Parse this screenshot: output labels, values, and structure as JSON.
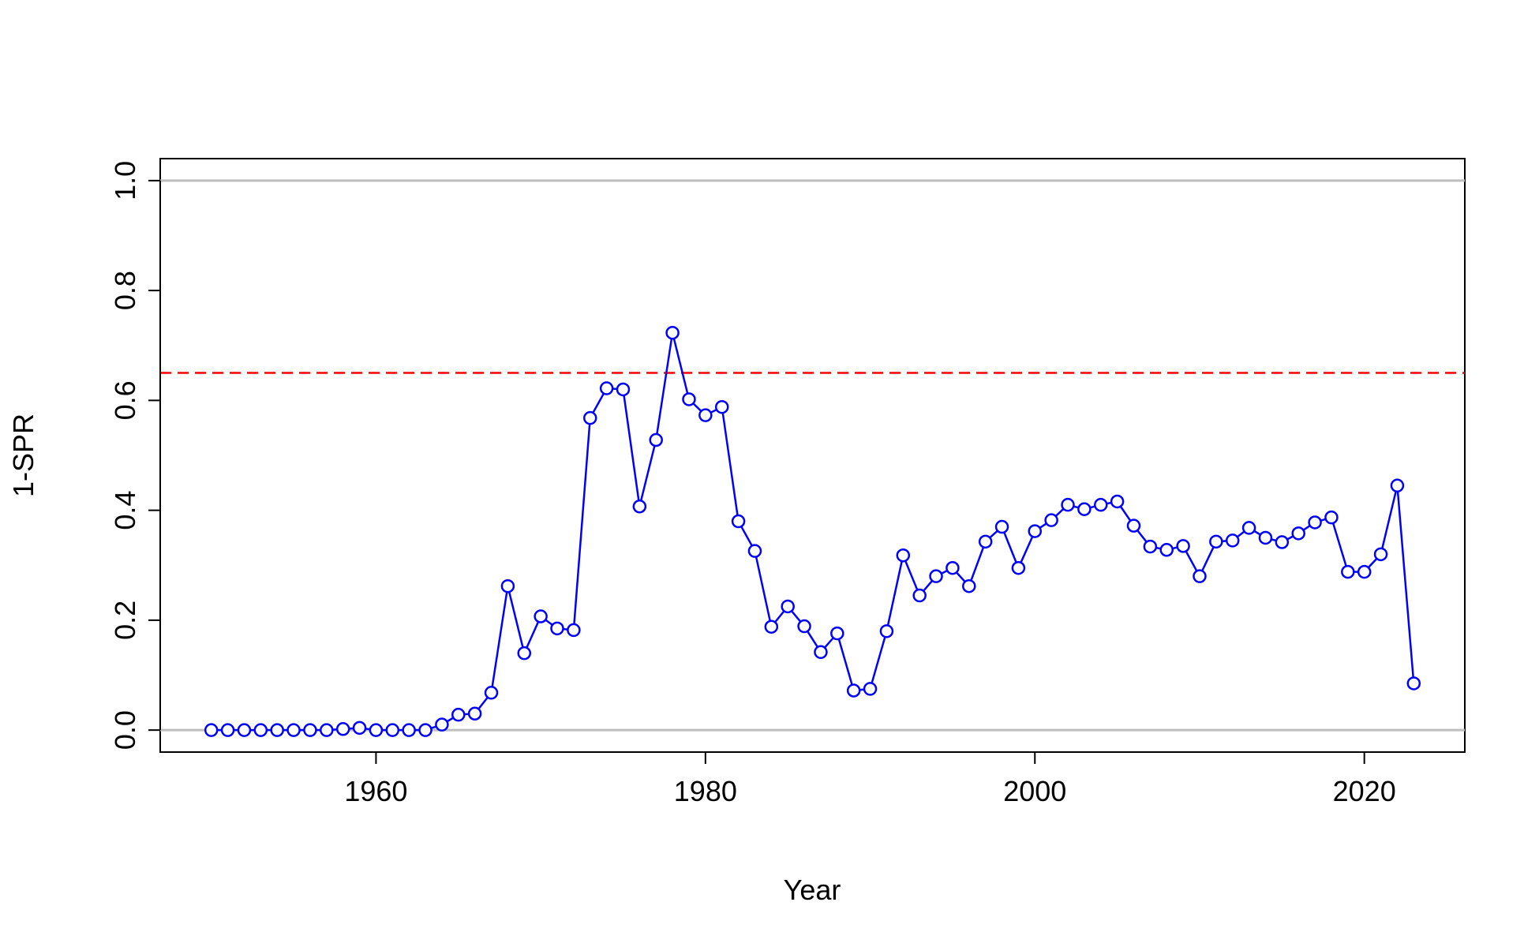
{
  "chart_data": {
    "type": "line",
    "title": "",
    "xlabel": "Year",
    "ylabel": "1-SPR",
    "xlim": [
      1946.9,
      2026.1
    ],
    "ylim": [
      -0.04,
      1.04
    ],
    "x_ticks": [
      1960,
      1980,
      2000,
      2020
    ],
    "y_ticks": [
      0.0,
      0.2,
      0.4,
      0.6,
      0.8,
      1.0
    ],
    "x_tick_labels": [
      "1960",
      "1980",
      "2000",
      "2020"
    ],
    "y_tick_labels": [
      "0.0",
      "0.2",
      "0.4",
      "0.6",
      "0.8",
      "1.0"
    ],
    "grid": false,
    "legend": "none",
    "reference_lines": [
      {
        "y": 0.0,
        "color": "#bebebe",
        "style": "solid"
      },
      {
        "y": 1.0,
        "color": "#bebebe",
        "style": "solid"
      },
      {
        "y": 0.65,
        "color": "#ff0000",
        "style": "dashed"
      }
    ],
    "series": [
      {
        "color": "#0000ff",
        "marker": "open-circle",
        "x": [
          1950,
          1951,
          1952,
          1953,
          1954,
          1955,
          1956,
          1957,
          1958,
          1959,
          1960,
          1961,
          1962,
          1963,
          1964,
          1965,
          1966,
          1967,
          1968,
          1969,
          1970,
          1971,
          1972,
          1973,
          1974,
          1975,
          1976,
          1977,
          1978,
          1979,
          1980,
          1981,
          1982,
          1983,
          1984,
          1985,
          1986,
          1987,
          1988,
          1989,
          1990,
          1991,
          1992,
          1993,
          1994,
          1995,
          1996,
          1997,
          1998,
          1999,
          2000,
          2001,
          2002,
          2003,
          2004,
          2005,
          2006,
          2007,
          2008,
          2009,
          2010,
          2011,
          2012,
          2013,
          2014,
          2015,
          2016,
          2017,
          2018,
          2019,
          2020,
          2021,
          2022,
          2023
        ],
        "values": [
          0.0,
          0.0,
          0.0,
          0.0,
          0.0,
          0.0,
          0.0,
          0.0,
          0.002,
          0.004,
          0.0,
          0.0,
          0.0,
          0.0,
          0.01,
          0.028,
          0.03,
          0.068,
          0.262,
          0.14,
          0.207,
          0.185,
          0.182,
          0.568,
          0.622,
          0.62,
          0.407,
          0.528,
          0.723,
          0.602,
          0.573,
          0.588,
          0.38,
          0.326,
          0.188,
          0.225,
          0.189,
          0.142,
          0.176,
          0.072,
          0.075,
          0.18,
          0.318,
          0.245,
          0.28,
          0.295,
          0.262,
          0.343,
          0.37,
          0.295,
          0.362,
          0.382,
          0.41,
          0.402,
          0.41,
          0.416,
          0.372,
          0.334,
          0.328,
          0.335,
          0.28,
          0.343,
          0.345,
          0.368,
          0.35,
          0.342,
          0.358,
          0.378,
          0.387,
          0.288,
          0.288,
          0.32,
          0.445,
          0.085
        ]
      }
    ]
  }
}
